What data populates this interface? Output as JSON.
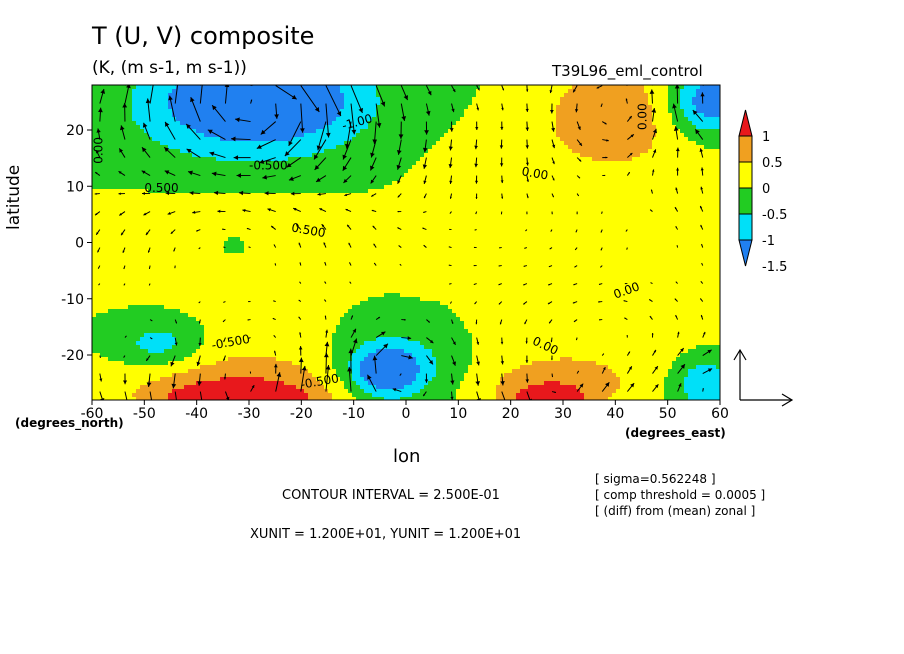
{
  "title": "T (U, V) composite",
  "units": "(K, (m s-1, m s-1))",
  "run_name": "T39L96_eml_control",
  "info": {
    "sigma": "[ sigma=0.562248 ]",
    "threshold": "[ comp threshold = 0.0005 ]",
    "diff": "[ (diff) from (mean) zonal ]",
    "contour_interval": "CONTOUR INTERVAL = 2.500E-01",
    "xy_unit": "XUNIT = 1.200E+01, YUNIT = 1.200E+01"
  },
  "colors": {
    "red": "#e8181c",
    "orange": "#f0a020",
    "yellow": "#ffff00",
    "green": "#22cc22",
    "cyan": "#00e0f8",
    "blue": "#2080f0"
  },
  "chart_data": {
    "type": "heatmap",
    "xlabel": "lon",
    "ylabel": "latitude",
    "x_unit_label": "(degrees_east)",
    "y_unit_label": "(degrees_north)",
    "xlim": [
      -60,
      60
    ],
    "ylim": [
      -28,
      28
    ],
    "x_ticks": [
      "-60",
      "-50",
      "-40",
      "-30",
      "-20",
      "-10",
      "0",
      "10",
      "20",
      "30",
      "40",
      "50",
      "60"
    ],
    "y_ticks": [
      "20",
      "10",
      "0",
      "-10",
      "-20"
    ],
    "colorbar": {
      "labels": [
        "1",
        "0.5",
        "0",
        "-0.5",
        "-1",
        "-1.5"
      ],
      "levels": [
        1.0,
        0.5,
        0.0,
        -0.5,
        -1.0,
        -1.5
      ],
      "colors": [
        "#e8181c",
        "#f0a020",
        "#ffff00",
        "#22cc22",
        "#00e0f8",
        "#2080f0"
      ]
    },
    "contour_labels": [
      "0.00",
      "-1.00",
      "-0.500",
      "0.500",
      "0.00",
      "0.00",
      "0.00",
      "0.00",
      "-0.500",
      "-0.500",
      "0.500"
    ],
    "blobs": [
      {
        "lon": -28,
        "lat": 26,
        "value": -1.5,
        "rx": 16,
        "ry": 7
      },
      {
        "lon": -30,
        "lat": 23,
        "value": -0.8,
        "rx": 26,
        "ry": 11
      },
      {
        "lon": 40,
        "lat": 24,
        "value": 0.8,
        "rx": 14,
        "ry": 8
      },
      {
        "lon": 58,
        "lat": 25,
        "value": -1.5,
        "rx": 8,
        "ry": 6
      },
      {
        "lon": 35,
        "lat": 14,
        "value": 0.3,
        "rx": 30,
        "ry": 9
      },
      {
        "lon": -34,
        "lat": 2,
        "value": 0.3,
        "rx": 26,
        "ry": 8
      },
      {
        "lon": 48,
        "lat": 2,
        "value": 0.3,
        "rx": 14,
        "ry": 8
      },
      {
        "lon": -33,
        "lat": 0,
        "value": -0.3,
        "rx": 6,
        "ry": 4
      },
      {
        "lon": 2,
        "lat": -1,
        "value": 0.3,
        "rx": 3,
        "ry": 5
      },
      {
        "lon": -47,
        "lat": -18,
        "value": -0.8,
        "rx": 8,
        "ry": 4
      },
      {
        "lon": -28,
        "lat": -20,
        "value": 0.3,
        "rx": 20,
        "ry": 8
      },
      {
        "lon": -32,
        "lat": -26,
        "value": 0.8,
        "rx": 22,
        "ry": 5
      },
      {
        "lon": -32,
        "lat": -28,
        "value": 1.2,
        "rx": 14,
        "ry": 2.5
      },
      {
        "lon": -2,
        "lat": -22,
        "value": -0.8,
        "rx": 12,
        "ry": 7
      },
      {
        "lon": -4,
        "lat": -23,
        "value": -1.3,
        "rx": 6,
        "ry": 4
      },
      {
        "lon": 38,
        "lat": -18,
        "value": 0.3,
        "rx": 24,
        "ry": 9
      },
      {
        "lon": 28,
        "lat": -26,
        "value": 0.8,
        "rx": 14,
        "ry": 5
      },
      {
        "lon": 27,
        "lat": -28,
        "value": 1.2,
        "rx": 6,
        "ry": 2
      },
      {
        "lon": 57,
        "lat": -25,
        "value": -1.0,
        "rx": 6,
        "ry": 5
      }
    ]
  }
}
